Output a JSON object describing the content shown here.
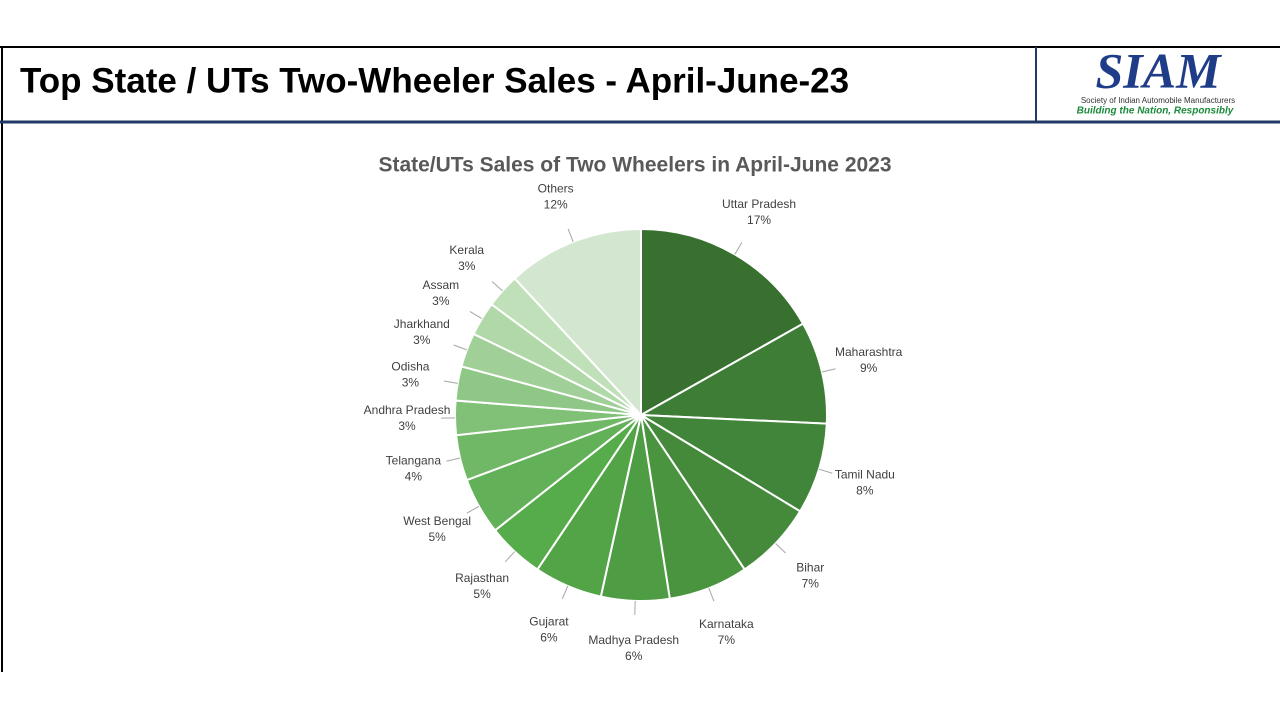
{
  "header": {
    "title": "Top State / UTs Two-Wheeler Sales - April-June-23",
    "logo": "SIAM",
    "logo_subtitle": "Society of Indian Automobile Manufacturers",
    "tagline": "Building the Nation, Responsibly"
  },
  "chart_data": {
    "type": "pie",
    "title": "State/UTs Sales of Two Wheelers in April-June 2023",
    "categories": [
      "Uttar Pradesh",
      "Maharashtra",
      "Tamil Nadu",
      "Bihar",
      "Karnataka",
      "Madhya Pradesh",
      "Gujarat",
      "Rajasthan",
      "West Bengal",
      "Telangana",
      "Andhra Pradesh",
      "Odisha",
      "Jharkhand",
      "Assam",
      "Kerala",
      "Others"
    ],
    "values": [
      17,
      9,
      8,
      7,
      7,
      6,
      6,
      5,
      5,
      4,
      3,
      3,
      3,
      3,
      3,
      12
    ],
    "value_labels": [
      "17%",
      "9%",
      "8%",
      "7%",
      "7%",
      "6%",
      "6%",
      "5%",
      "5%",
      "4%",
      "3%",
      "3%",
      "3%",
      "3%",
      "3%",
      "12%"
    ],
    "colors": [
      "#38702f",
      "#3e7d35",
      "#41853a",
      "#45893b",
      "#4a9440",
      "#4e9c43",
      "#52a447",
      "#56ab4a",
      "#62b058",
      "#70b766",
      "#80c077",
      "#8fc786",
      "#a0cf97",
      "#b0d8a8",
      "#c0e0b9",
      "#d3e7d0"
    ]
  }
}
